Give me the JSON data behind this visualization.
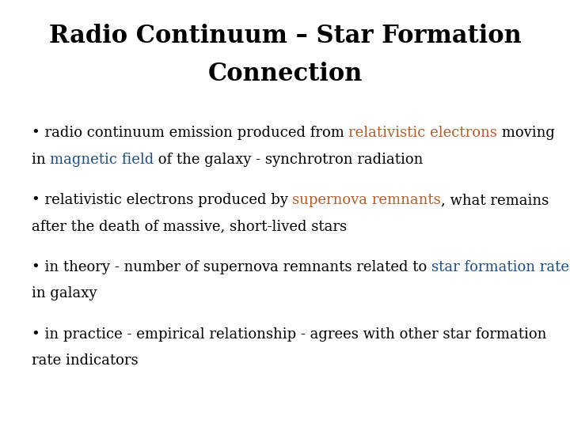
{
  "title_line1": "Radio Continuum – Star Formation",
  "title_line2": "Connection",
  "title_color": "#000000",
  "title_fontsize": 22,
  "body_fontsize": 13,
  "background_color": "#ffffff",
  "bullet1_segments": [
    {
      "text": "• radio continuum emission produced from ",
      "color": "#000000"
    },
    {
      "text": "relativistic electrons",
      "color": "#b85c2a"
    },
    {
      "text": " moving",
      "color": "#000000"
    }
  ],
  "bullet1_line2_segments": [
    {
      "text": "in ",
      "color": "#000000"
    },
    {
      "text": "magnetic field",
      "color": "#1a4f8a"
    },
    {
      "text": " of the galaxy - synchrotron radiation",
      "color": "#000000"
    }
  ],
  "bullet2_segments": [
    {
      "text": "• relativistic electrons produced by ",
      "color": "#000000"
    },
    {
      "text": "supernova remnants",
      "color": "#b85c2a"
    },
    {
      "text": ", what remains",
      "color": "#000000"
    }
  ],
  "bullet2_line2_segments": [
    {
      "text": "after the death of massive, short-lived stars",
      "color": "#000000"
    }
  ],
  "bullet3_segments": [
    {
      "text": "• in theory - number of supernova remnants related to ",
      "color": "#000000"
    },
    {
      "text": "star formation rate",
      "color": "#1a4f8a"
    }
  ],
  "bullet3_line2_segments": [
    {
      "text": "in galaxy",
      "color": "#000000"
    }
  ],
  "bullet4_segments": [
    {
      "text": "• in practice - empirical relationship - agrees with other star formation",
      "color": "#000000"
    }
  ],
  "bullet4_line2_segments": [
    {
      "text": "rate indicators",
      "color": "#000000"
    }
  ]
}
